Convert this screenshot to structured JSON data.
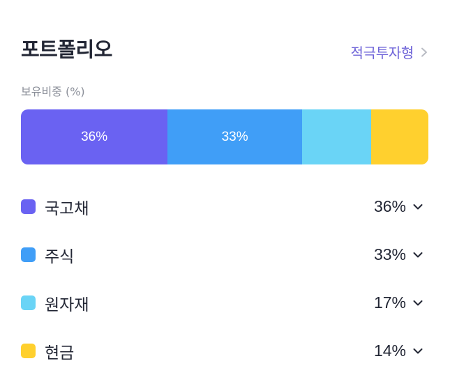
{
  "header": {
    "title": "포트폴리오",
    "profile_label": "적극투자형",
    "profile_icon": "chevron-right-icon"
  },
  "subtitle": "보유비중 (%)",
  "allocation": {
    "segments": [
      {
        "name": "국고채",
        "percent": 36,
        "label": "36%",
        "color": "#6a62f2"
      },
      {
        "name": "주식",
        "percent": 33,
        "label": "33%",
        "color": "#409ef7"
      },
      {
        "name": "원자재",
        "percent": 17,
        "label": "",
        "color": "#6ad4f6"
      },
      {
        "name": "현금",
        "percent": 14,
        "label": "",
        "color": "#ffd02e"
      }
    ]
  },
  "legend": {
    "items": [
      {
        "label": "국고채",
        "value": "36%",
        "color": "#6a62f2",
        "icon": "chevron-down-icon"
      },
      {
        "label": "주식",
        "value": "33%",
        "color": "#409ef7",
        "icon": "chevron-down-icon"
      },
      {
        "label": "원자재",
        "value": "17%",
        "color": "#6ad4f6",
        "icon": "chevron-down-icon"
      },
      {
        "label": "현금",
        "value": "14%",
        "color": "#ffd02e",
        "icon": "chevron-down-icon"
      }
    ]
  }
}
